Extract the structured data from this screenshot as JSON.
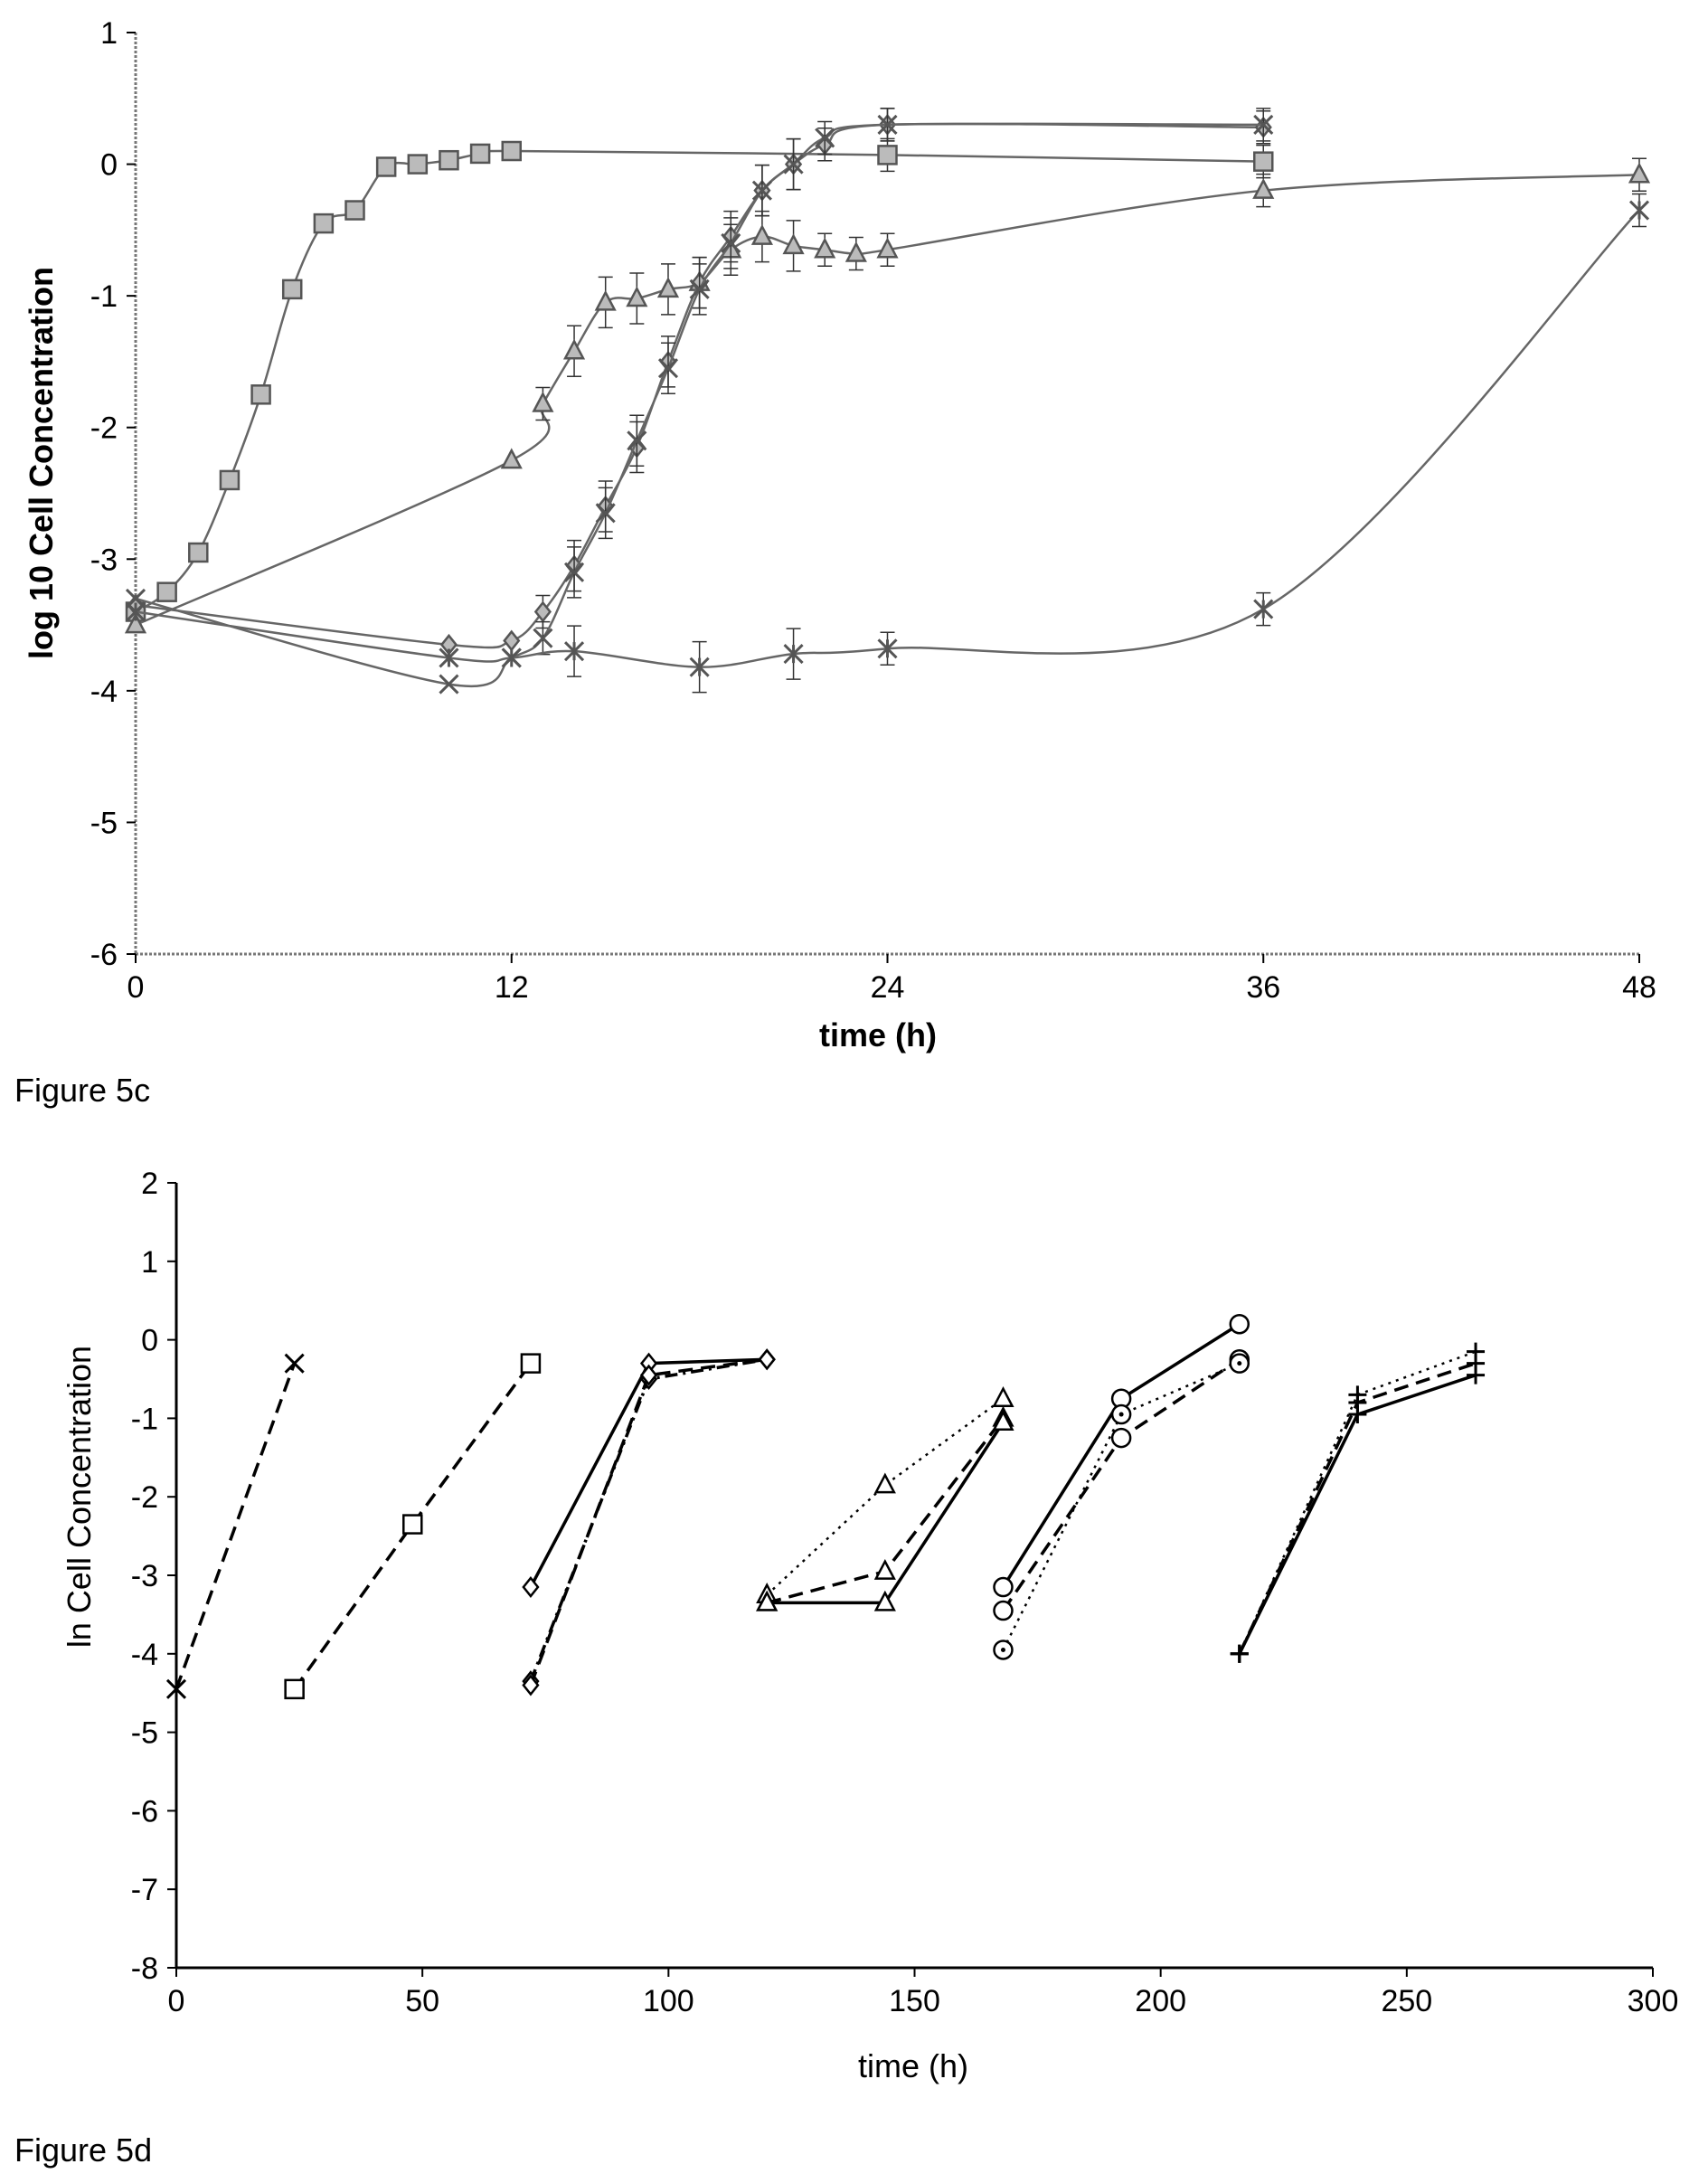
{
  "chart_data": [
    {
      "type": "line",
      "caption": "",
      "title": "",
      "xlabel": "time (h)",
      "ylabel": "log 10 Cell Concentration",
      "xlim": [
        0,
        48
      ],
      "ylim": [
        -6,
        1
      ],
      "xticks": [
        0,
        12,
        24,
        36,
        48
      ],
      "yticks": [
        1,
        0,
        -1,
        -2,
        -3,
        -4,
        -5,
        -6
      ],
      "grid": false,
      "legend": "none",
      "series": [
        {
          "marker": "square",
          "x": [
            0,
            1,
            2,
            3,
            4,
            5,
            6,
            7,
            8,
            9,
            10,
            11,
            12,
            24,
            36
          ],
          "y": [
            -3.4,
            -3.25,
            -2.95,
            -2.4,
            -1.75,
            -0.95,
            -0.45,
            -0.35,
            -0.02,
            0.0,
            0.03,
            0.08,
            0.1,
            0.07,
            0.02
          ]
        },
        {
          "marker": "triangle",
          "x": [
            0,
            12,
            13,
            14,
            15,
            16,
            17,
            18,
            19,
            20,
            21,
            22,
            23,
            24,
            36,
            48
          ],
          "y": [
            -3.5,
            -2.25,
            -1.82,
            -1.42,
            -1.05,
            -1.02,
            -0.95,
            -0.9,
            -0.65,
            -0.55,
            -0.62,
            -0.65,
            -0.68,
            -0.65,
            -0.2,
            -0.08
          ]
        },
        {
          "marker": "diamond",
          "x": [
            0,
            10,
            12,
            13,
            14,
            15,
            16,
            17,
            18,
            19,
            20,
            21,
            22,
            24,
            36
          ],
          "y": [
            -3.35,
            -3.65,
            -3.62,
            -3.4,
            -3.05,
            -2.6,
            -2.15,
            -1.5,
            -0.9,
            -0.55,
            -0.2,
            0.0,
            0.15,
            0.3,
            0.28
          ]
        },
        {
          "marker": "x",
          "x": [
            0,
            10,
            12,
            13,
            14,
            15,
            16,
            17,
            18,
            19,
            20,
            21,
            22,
            24,
            36
          ],
          "y": [
            -3.3,
            -3.95,
            -3.75,
            -3.6,
            -3.1,
            -2.65,
            -2.1,
            -1.55,
            -0.95,
            -0.6,
            -0.2,
            0.0,
            0.2,
            0.3,
            0.3
          ]
        },
        {
          "marker": "star",
          "x": [
            0,
            10,
            12,
            14,
            18,
            21,
            24,
            36,
            48
          ],
          "y": [
            -3.4,
            -3.75,
            -3.75,
            -3.7,
            -3.82,
            -3.72,
            -3.68,
            -3.38,
            -0.35
          ]
        }
      ]
    },
    {
      "type": "line",
      "caption": "",
      "title": "",
      "xlabel": "time (h)",
      "ylabel": "ln Cell Concentration",
      "xlim": [
        0,
        300
      ],
      "ylim": [
        -8,
        2
      ],
      "xticks": [
        0,
        50,
        100,
        150,
        200,
        250,
        300
      ],
      "yticks": [
        2,
        1,
        0,
        -1,
        -2,
        -3,
        -4,
        -5,
        -6,
        -7,
        -8
      ],
      "grid": false,
      "legend": "none",
      "series": [
        {
          "marker": "x",
          "style": "dashed",
          "x": [
            0,
            24
          ],
          "y": [
            -4.45,
            -0.3
          ]
        },
        {
          "marker": "square",
          "style": "dashed",
          "x": [
            24,
            48,
            72
          ],
          "y": [
            -4.45,
            -2.35,
            -0.3
          ]
        },
        {
          "marker": "diamond",
          "style": "solid",
          "x": [
            72,
            96,
            120
          ],
          "y": [
            -3.15,
            -0.3,
            -0.25
          ]
        },
        {
          "marker": "diamond",
          "style": "dashdot",
          "x": [
            72,
            96,
            120
          ],
          "y": [
            -4.35,
            -0.5,
            -0.25
          ]
        },
        {
          "marker": "diamond",
          "style": "dashed",
          "x": [
            72,
            96,
            120
          ],
          "y": [
            -4.4,
            -0.45,
            -0.25
          ]
        },
        {
          "marker": "triangle",
          "style": "dotted",
          "x": [
            120,
            144,
            168
          ],
          "y": [
            -3.25,
            -1.85,
            -0.75
          ]
        },
        {
          "marker": "triangle",
          "style": "dashed",
          "x": [
            120,
            144,
            168
          ],
          "y": [
            -3.35,
            -2.95,
            -1.0
          ]
        },
        {
          "marker": "triangle",
          "style": "solid",
          "x": [
            120,
            144,
            168
          ],
          "y": [
            -3.35,
            -3.35,
            -1.05
          ]
        },
        {
          "marker": "circle",
          "style": "solid",
          "x": [
            168,
            192,
            216
          ],
          "y": [
            -3.15,
            -0.75,
            0.2
          ]
        },
        {
          "marker": "circle",
          "style": "dashed",
          "x": [
            168,
            192,
            216
          ],
          "y": [
            -3.45,
            -1.25,
            -0.25
          ]
        },
        {
          "marker": "circle-dot",
          "style": "dotted",
          "x": [
            168,
            192,
            216
          ],
          "y": [
            -3.95,
            -0.95,
            -0.3
          ]
        },
        {
          "marker": "plus",
          "style": "solid",
          "x": [
            216,
            240,
            264
          ],
          "y": [
            -4.0,
            -0.95,
            -0.45
          ]
        },
        {
          "marker": "plus",
          "style": "dashed",
          "x": [
            216,
            240,
            264
          ],
          "y": [
            -4.0,
            -0.8,
            -0.3
          ]
        },
        {
          "marker": "plus",
          "style": "dotted",
          "x": [
            216,
            240,
            264
          ],
          "y": [
            -4.0,
            -0.7,
            -0.15
          ]
        }
      ]
    }
  ],
  "captions": {
    "fig_c": "Figure 5c",
    "fig_d": "Figure 5d"
  }
}
